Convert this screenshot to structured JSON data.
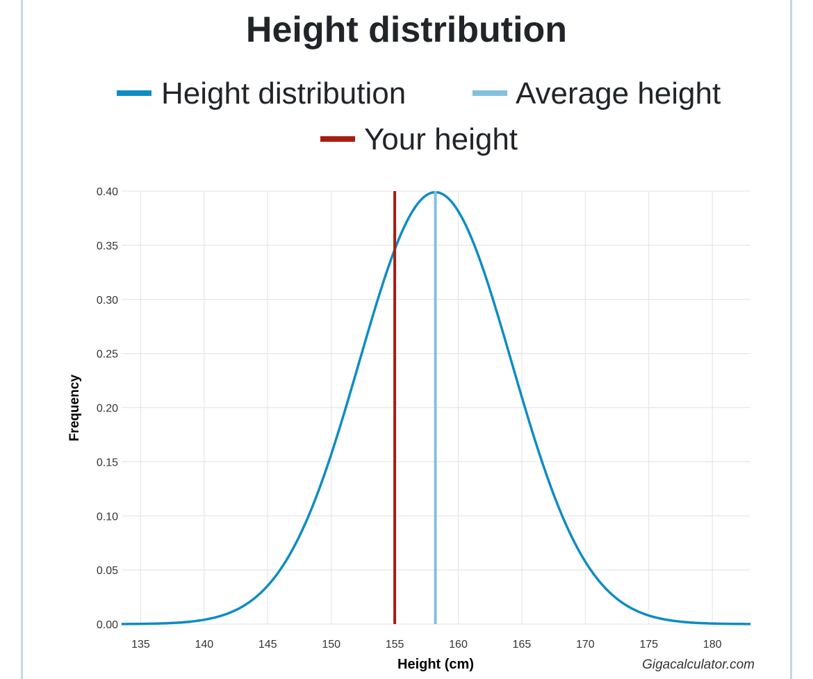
{
  "chart_data": {
    "type": "line",
    "title": "Height distribution",
    "xlabel": "Height (cm)",
    "ylabel": "Frequency",
    "xlim": [
      133.5,
      183
    ],
    "ylim": [
      0,
      0.4
    ],
    "xticks": [
      135,
      140,
      145,
      150,
      155,
      160,
      165,
      170,
      175,
      180
    ],
    "yticks": [
      0.0,
      0.05,
      0.1,
      0.15,
      0.2,
      0.25,
      0.3,
      0.35,
      0.4
    ],
    "ytick_labels": [
      "0.00",
      "0.05",
      "0.10",
      "0.15",
      "0.20",
      "0.25",
      "0.30",
      "0.35",
      "0.40"
    ],
    "grid": true,
    "legend_position": "top-center",
    "series": [
      {
        "name": "Height distribution",
        "kind": "normal_curve",
        "mean": 158.2,
        "sd": 6.0,
        "peak": 0.399,
        "color": "#0e8cc4"
      },
      {
        "name": "Average height",
        "kind": "vertical_line",
        "x": 158.2,
        "color": "#82c1dc"
      },
      {
        "name": "Your height",
        "kind": "vertical_line",
        "x": 155.0,
        "color": "#a81d12"
      }
    ],
    "credit": "Gigacalculator.com"
  }
}
